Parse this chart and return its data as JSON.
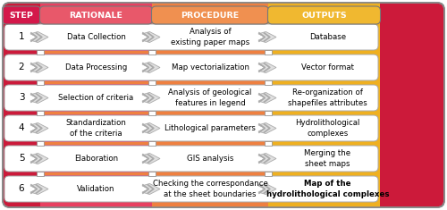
{
  "headers": [
    "STEP",
    "RATIONALE",
    "PROCEDURE",
    "OUTPUTS"
  ],
  "header_colors": [
    "#d4184a",
    "#e8586a",
    "#f09050",
    "#f0b830"
  ],
  "col_bg_colors": [
    "#cc1a3a",
    "#e84060",
    "#ef8040",
    "#efb020"
  ],
  "steps": [
    1,
    2,
    3,
    4,
    5,
    6
  ],
  "rationale": [
    "Data Collection",
    "Data Processing",
    "Selection of criteria",
    "Standardization\nof the criteria",
    "Elaboration",
    "Validation"
  ],
  "procedure": [
    "Analysis of\nexisting paper maps",
    "Map vectorialization",
    "Analysis of geological\nfeatures in legend",
    "Lithological parameters",
    "GIS analysis",
    "Checking the correspondance\nat the sheet boundaries"
  ],
  "outputs": [
    "Database",
    "Vector format",
    "Re-organization of\nshapefiles attributes",
    "Hydrolithological\ncomplexes",
    "Merging the\nsheet maps",
    "Map of the\nhydrolithological complexes"
  ],
  "output_bold": [
    false,
    false,
    false,
    false,
    false,
    true
  ],
  "sep_colors": [
    "#cc1a3a",
    "#ef8040",
    "#efb020"
  ],
  "outer_border_color": "#888888",
  "row_border_color": "#aaaaaa",
  "white_row_color": "#ffffff",
  "arrow_face_color": "#e0e0e0",
  "arrow_edge_color": "#aaaaaa"
}
